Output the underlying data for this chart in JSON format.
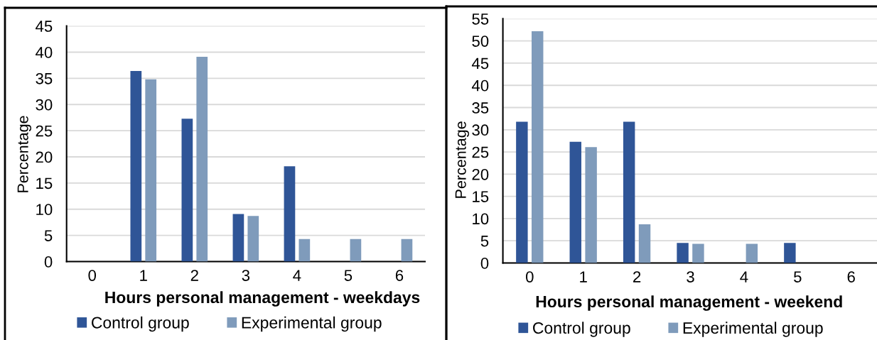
{
  "chart_data": [
    {
      "type": "bar",
      "categories": [
        "0",
        "1",
        "2",
        "3",
        "4",
        "5",
        "6"
      ],
      "xlabel": "Hours personal management - weekdays",
      "ylabel": "Percentage",
      "series": [
        {
          "name": "Control group",
          "color": "#2f5597",
          "values": [
            0,
            36.4,
            27.3,
            9.1,
            18.2,
            0,
            0
          ]
        },
        {
          "name": "Experimental group",
          "color": "#7f9bbb",
          "values": [
            0,
            34.8,
            39.1,
            8.7,
            4.3,
            4.3,
            4.3
          ]
        }
      ],
      "ylim": [
        0,
        45
      ],
      "yticks": [
        0,
        5,
        10,
        15,
        20,
        25,
        30,
        35,
        40,
        45
      ],
      "grid": "y",
      "legend": "bottom"
    },
    {
      "type": "bar",
      "categories": [
        "0",
        "1",
        "2",
        "3",
        "4",
        "5",
        "6"
      ],
      "xlabel": "Hours personal management - weekend",
      "ylabel": "Percentage",
      "series": [
        {
          "name": "Control group",
          "color": "#2f5597",
          "values": [
            31.8,
            27.3,
            31.8,
            4.5,
            0,
            4.5,
            0
          ]
        },
        {
          "name": "Experimental group",
          "color": "#7f9bbb",
          "values": [
            52.2,
            26.1,
            8.7,
            4.3,
            4.3,
            0,
            0
          ]
        }
      ],
      "ylim": [
        0,
        55
      ],
      "yticks": [
        0,
        5,
        10,
        15,
        20,
        25,
        30,
        35,
        40,
        45,
        50,
        55
      ],
      "grid": "y",
      "legend": "bottom"
    }
  ]
}
